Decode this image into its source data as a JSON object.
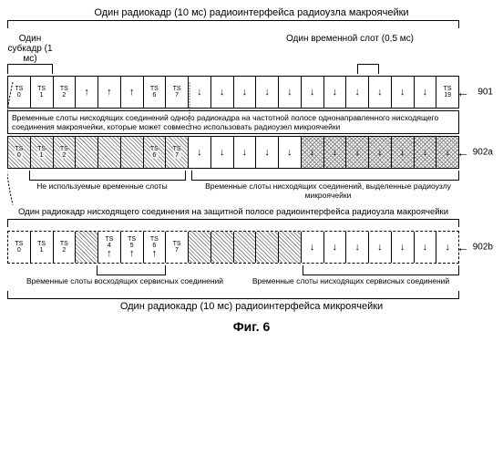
{
  "title_top": "Один радиокадр (10 мс) радиоинтерфейса радиоузла макроячейки",
  "label_subframe": "Один субкадр (1 мс)",
  "label_timeslot": "Один временной слот (0,5 мс)",
  "caption_901": "Временные слоты нисходящих соединений одного радиокадра на частотной полосе однонаправленного нисходящего соединения макроячейки, которые может совместно использовать радиоузел микроячейки",
  "annotation_902a_left": "Не используемые временные слоты",
  "annotation_902a_right": "Временные слоты нисходящих соединений, выделенные радиоузлу микроячейки",
  "title_mid": "Один радиокадр нисходящего соединения на защитной полосе радиоинтерфейса радиоузла макроячейки",
  "annotation_902b_left": "Временные слоты восходящих сервисных соединений",
  "annotation_902b_right": "Временные слоты нисходящих сервисных соединений",
  "title_bottom": "Один радиокадр (10 мс) радиоинтерфейса микроячейки",
  "figure_label": "Фиг. 6",
  "row_labels": {
    "r1": "901",
    "r2": "902a",
    "r3": "902b"
  },
  "frame1": [
    {
      "label": "TS 0",
      "arrow": "",
      "hatch": ""
    },
    {
      "label": "TS 1",
      "arrow": "",
      "hatch": ""
    },
    {
      "label": "TS 2",
      "arrow": "",
      "hatch": ""
    },
    {
      "label": "",
      "arrow": "↑",
      "hatch": ""
    },
    {
      "label": "",
      "arrow": "↑",
      "hatch": ""
    },
    {
      "label": "",
      "arrow": "↑",
      "hatch": ""
    },
    {
      "label": "TS 6",
      "arrow": "",
      "hatch": ""
    },
    {
      "label": "TS 7",
      "arrow": "",
      "hatch": ""
    },
    {
      "label": "",
      "arrow": "↓",
      "hatch": ""
    },
    {
      "label": "",
      "arrow": "↓",
      "hatch": ""
    },
    {
      "label": "",
      "arrow": "↓",
      "hatch": ""
    },
    {
      "label": "",
      "arrow": "↓",
      "hatch": ""
    },
    {
      "label": "",
      "arrow": "↓",
      "hatch": ""
    },
    {
      "label": "",
      "arrow": "↓",
      "hatch": ""
    },
    {
      "label": "",
      "arrow": "↓",
      "hatch": ""
    },
    {
      "label": "",
      "arrow": "↓",
      "hatch": ""
    },
    {
      "label": "",
      "arrow": "↓",
      "hatch": ""
    },
    {
      "label": "",
      "arrow": "↓",
      "hatch": ""
    },
    {
      "label": "",
      "arrow": "↓",
      "hatch": ""
    },
    {
      "label": "TS 19",
      "arrow": "",
      "hatch": ""
    }
  ],
  "frame2": [
    {
      "label": "TS 0",
      "arrow": "",
      "hatch": "hatched"
    },
    {
      "label": "TS 1",
      "arrow": "",
      "hatch": "hatched"
    },
    {
      "label": "TS 2",
      "arrow": "",
      "hatch": "hatched"
    },
    {
      "label": "",
      "arrow": "",
      "hatch": "hatched"
    },
    {
      "label": "",
      "arrow": "",
      "hatch": "hatched"
    },
    {
      "label": "",
      "arrow": "",
      "hatch": "hatched"
    },
    {
      "label": "TS 6",
      "arrow": "",
      "hatch": "hatched"
    },
    {
      "label": "TS 7",
      "arrow": "",
      "hatch": "hatched"
    },
    {
      "label": "",
      "arrow": "↓",
      "hatch": ""
    },
    {
      "label": "",
      "arrow": "↓",
      "hatch": ""
    },
    {
      "label": "",
      "arrow": "↓",
      "hatch": ""
    },
    {
      "label": "",
      "arrow": "↓",
      "hatch": ""
    },
    {
      "label": "",
      "arrow": "↓",
      "hatch": ""
    },
    {
      "label": "",
      "arrow": "↓",
      "hatch": "cross"
    },
    {
      "label": "",
      "arrow": "↓",
      "hatch": "cross"
    },
    {
      "label": "",
      "arrow": "↓",
      "hatch": "cross"
    },
    {
      "label": "",
      "arrow": "↓",
      "hatch": "cross"
    },
    {
      "label": "",
      "arrow": "↓",
      "hatch": "cross"
    },
    {
      "label": "",
      "arrow": "↓",
      "hatch": "cross"
    },
    {
      "label": "",
      "arrow": "↓",
      "hatch": "cross"
    }
  ],
  "frame3": [
    {
      "label": "TS 0",
      "arrow": "",
      "hatch": ""
    },
    {
      "label": "TS 1",
      "arrow": "",
      "hatch": ""
    },
    {
      "label": "TS 2",
      "arrow": "",
      "hatch": ""
    },
    {
      "label": "",
      "arrow": "",
      "hatch": "hatched"
    },
    {
      "label": "TS 4",
      "arrow": "↑",
      "hatch": ""
    },
    {
      "label": "TS 5",
      "arrow": "↑",
      "hatch": ""
    },
    {
      "label": "TS 6",
      "arrow": "↑",
      "hatch": ""
    },
    {
      "label": "TS 7",
      "arrow": "",
      "hatch": ""
    },
    {
      "label": "",
      "arrow": "",
      "hatch": "hatched"
    },
    {
      "label": "",
      "arrow": "",
      "hatch": "hatched"
    },
    {
      "label": "",
      "arrow": "",
      "hatch": "hatched"
    },
    {
      "label": "",
      "arrow": "",
      "hatch": "hatched"
    },
    {
      "label": "",
      "arrow": "",
      "hatch": "hatched"
    },
    {
      "label": "",
      "arrow": "↓",
      "hatch": ""
    },
    {
      "label": "",
      "arrow": "↓",
      "hatch": ""
    },
    {
      "label": "",
      "arrow": "↓",
      "hatch": ""
    },
    {
      "label": "",
      "arrow": "↓",
      "hatch": ""
    },
    {
      "label": "",
      "arrow": "↓",
      "hatch": ""
    },
    {
      "label": "",
      "arrow": "↓",
      "hatch": ""
    },
    {
      "label": "",
      "arrow": "↓",
      "hatch": ""
    }
  ]
}
